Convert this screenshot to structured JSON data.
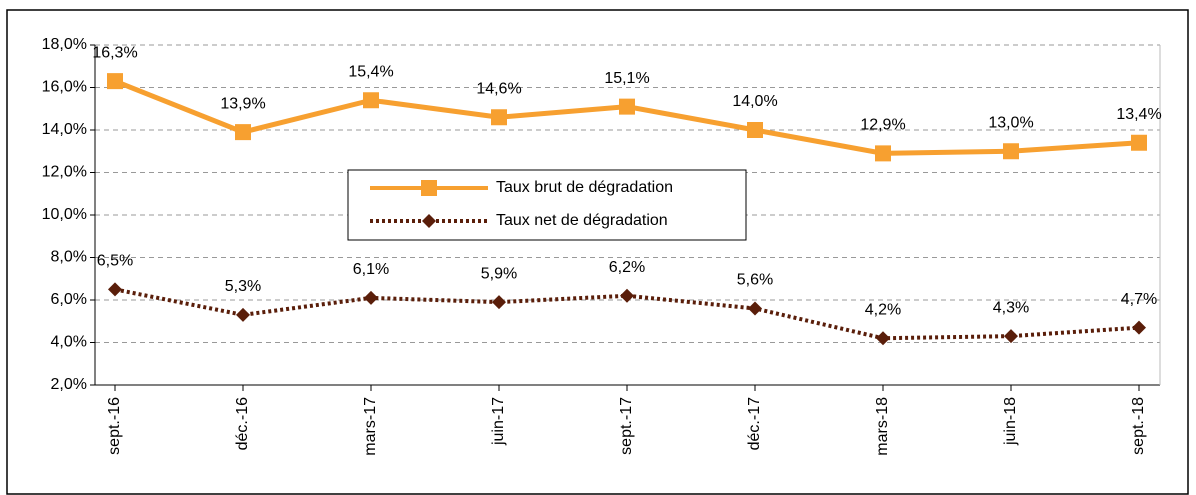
{
  "chart_data": {
    "type": "line",
    "categories": [
      "sept.-16",
      "déc.-16",
      "mars-17",
      "juin-17",
      "sept.-17",
      "déc.-17",
      "mars-18",
      "juin-18",
      "sept.-18"
    ],
    "series": [
      {
        "name": "Taux brut de dégradation",
        "color": "#f7a030",
        "marker": "square",
        "dash": "solid",
        "values": [
          16.3,
          13.9,
          15.4,
          14.6,
          15.1,
          14.0,
          12.9,
          13.0,
          13.4
        ],
        "value_labels": [
          "16,3%",
          "13,9%",
          "15,4%",
          "14,6%",
          "15,1%",
          "14,0%",
          "12,9%",
          "13,0%",
          "13,4%"
        ]
      },
      {
        "name": "Taux net de dégradation",
        "color": "#5a1e0a",
        "marker": "diamond",
        "dash": "dotted",
        "values": [
          6.5,
          5.3,
          6.1,
          5.9,
          6.2,
          5.6,
          4.2,
          4.3,
          4.7
        ],
        "value_labels": [
          "6,5%",
          "5,3%",
          "6,1%",
          "5,9%",
          "6,2%",
          "5,6%",
          "4,2%",
          "4,3%",
          "4,7%"
        ]
      }
    ],
    "ylim": [
      2,
      18
    ],
    "yticks": [
      {
        "value": 2,
        "label": "2,0%"
      },
      {
        "value": 4,
        "label": "4,0%"
      },
      {
        "value": 6,
        "label": "6,0%"
      },
      {
        "value": 8,
        "label": "8,0%"
      },
      {
        "value": 10,
        "label": "10,0%"
      },
      {
        "value": 12,
        "label": "12,0%"
      },
      {
        "value": 14,
        "label": "14,0%"
      },
      {
        "value": 16,
        "label": "16,0%"
      },
      {
        "value": 18,
        "label": "18,0%"
      }
    ],
    "grid": true
  }
}
